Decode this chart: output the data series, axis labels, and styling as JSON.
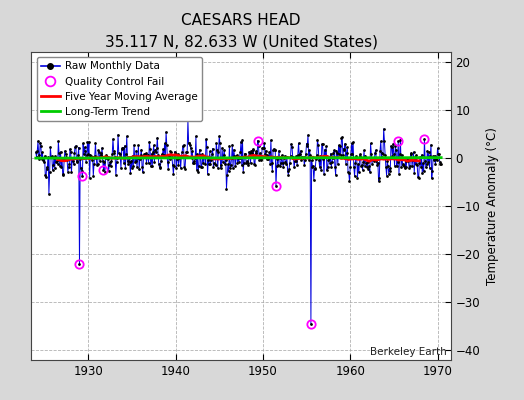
{
  "title": "CAESARS HEAD",
  "subtitle": "35.117 N, 82.633 W (United States)",
  "ylabel": "Temperature Anomaly (°C)",
  "watermark": "Berkeley Earth",
  "xlim": [
    1923.5,
    1971.5
  ],
  "ylim": [
    -42,
    22
  ],
  "yticks": [
    -40,
    -30,
    -20,
    -10,
    0,
    10,
    20
  ],
  "xticks": [
    1930,
    1940,
    1950,
    1960,
    1970
  ],
  "bg_color": "#d8d8d8",
  "plot_bg_color": "#ffffff",
  "grid_color": "#aaaaaa",
  "seed": 42,
  "raw_data_color": "#0000dd",
  "raw_dot_color": "#000000",
  "qc_fail_color": "#ff00ff",
  "moving_avg_color": "#ff0000",
  "trend_color": "#00cc00",
  "qc_fail_points": [
    [
      1929.0,
      -22.0
    ],
    [
      1929.33,
      -3.8
    ],
    [
      1931.75,
      -2.5
    ],
    [
      1949.42,
      3.6
    ],
    [
      1951.5,
      -5.8
    ],
    [
      1955.5,
      -34.5
    ],
    [
      1965.5,
      3.5
    ],
    [
      1968.5,
      3.9
    ]
  ]
}
